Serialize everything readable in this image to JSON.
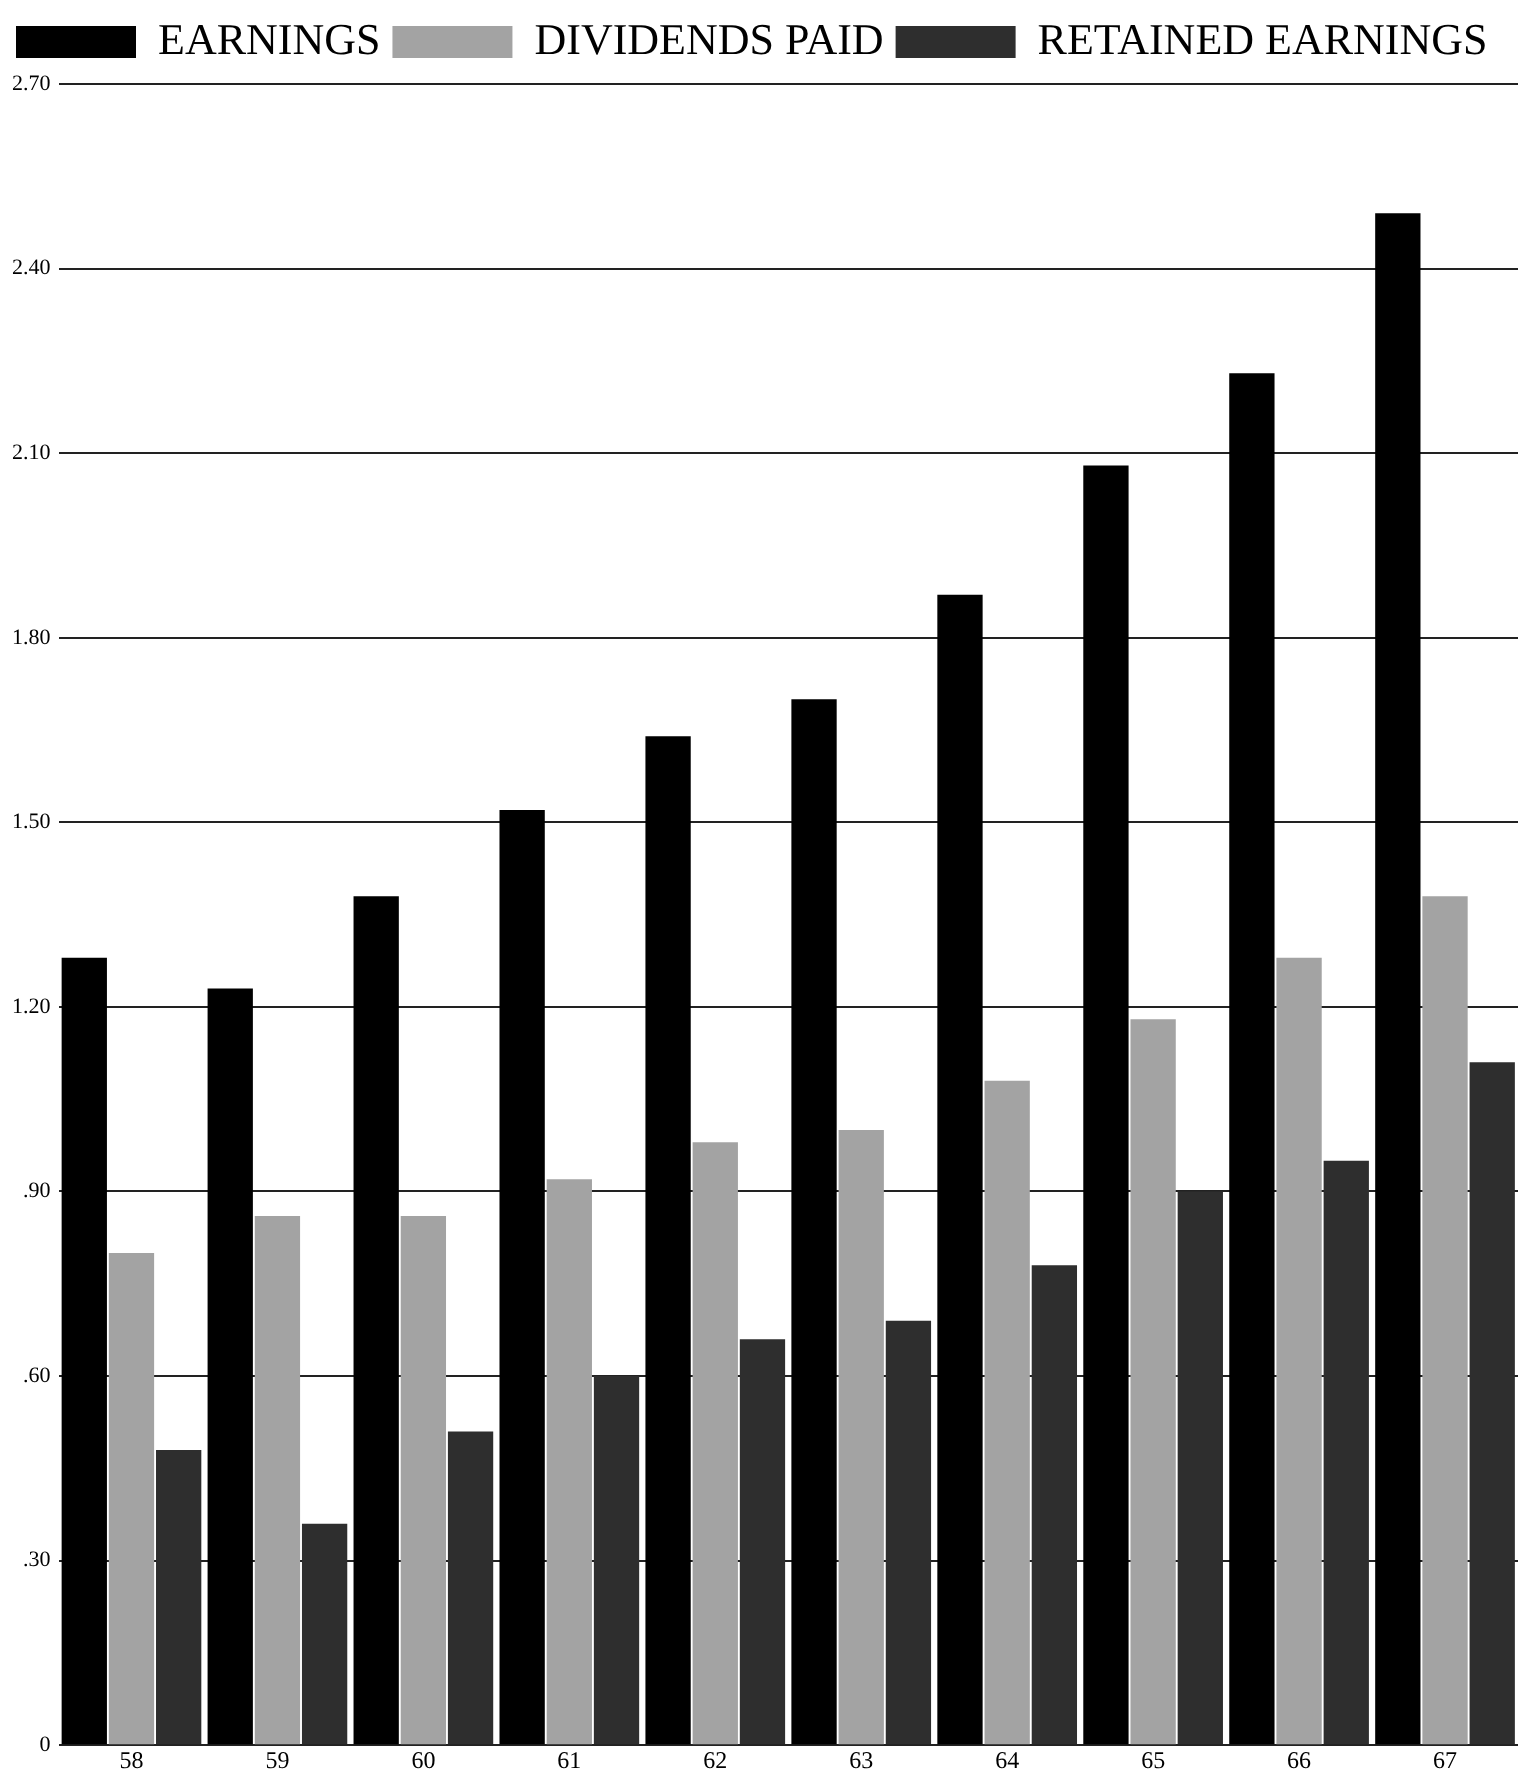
{
  "chart_data": {
    "type": "bar",
    "categories": [
      "58",
      "59",
      "60",
      "61",
      "62",
      "63",
      "64",
      "65",
      "66",
      "67"
    ],
    "series": [
      {
        "name": "EARNINGS",
        "color": "#000000",
        "values": [
          1.28,
          1.23,
          1.38,
          1.52,
          1.64,
          1.7,
          1.87,
          2.08,
          2.23,
          2.49
        ]
      },
      {
        "name": "DIVIDENDS PAID",
        "color": "#a3a3a3",
        "values": [
          0.8,
          0.86,
          0.86,
          0.92,
          0.98,
          1.0,
          1.08,
          1.18,
          1.28,
          1.38
        ]
      },
      {
        "name": "RETAINED EARNINGS",
        "color": "#2e2e2e",
        "values": [
          0.48,
          0.36,
          0.51,
          0.6,
          0.66,
          0.69,
          0.78,
          0.9,
          0.95,
          1.11
        ]
      }
    ],
    "ylim": [
      0,
      2.7
    ],
    "yticks": [
      {
        "value": 0,
        "label": "0"
      },
      {
        "value": 0.3,
        "label": ".30"
      },
      {
        "value": 0.6,
        "label": ".60"
      },
      {
        "value": 0.9,
        "label": ".90"
      },
      {
        "value": 1.2,
        "label": "1.20"
      },
      {
        "value": 1.5,
        "label": "1.50"
      },
      {
        "value": 1.8,
        "label": "1.80"
      },
      {
        "value": 2.1,
        "label": "2.10"
      },
      {
        "value": 2.4,
        "label": "2.40"
      },
      {
        "value": 2.7,
        "label": "2.70"
      }
    ],
    "grid": "y",
    "legend": "top left"
  }
}
